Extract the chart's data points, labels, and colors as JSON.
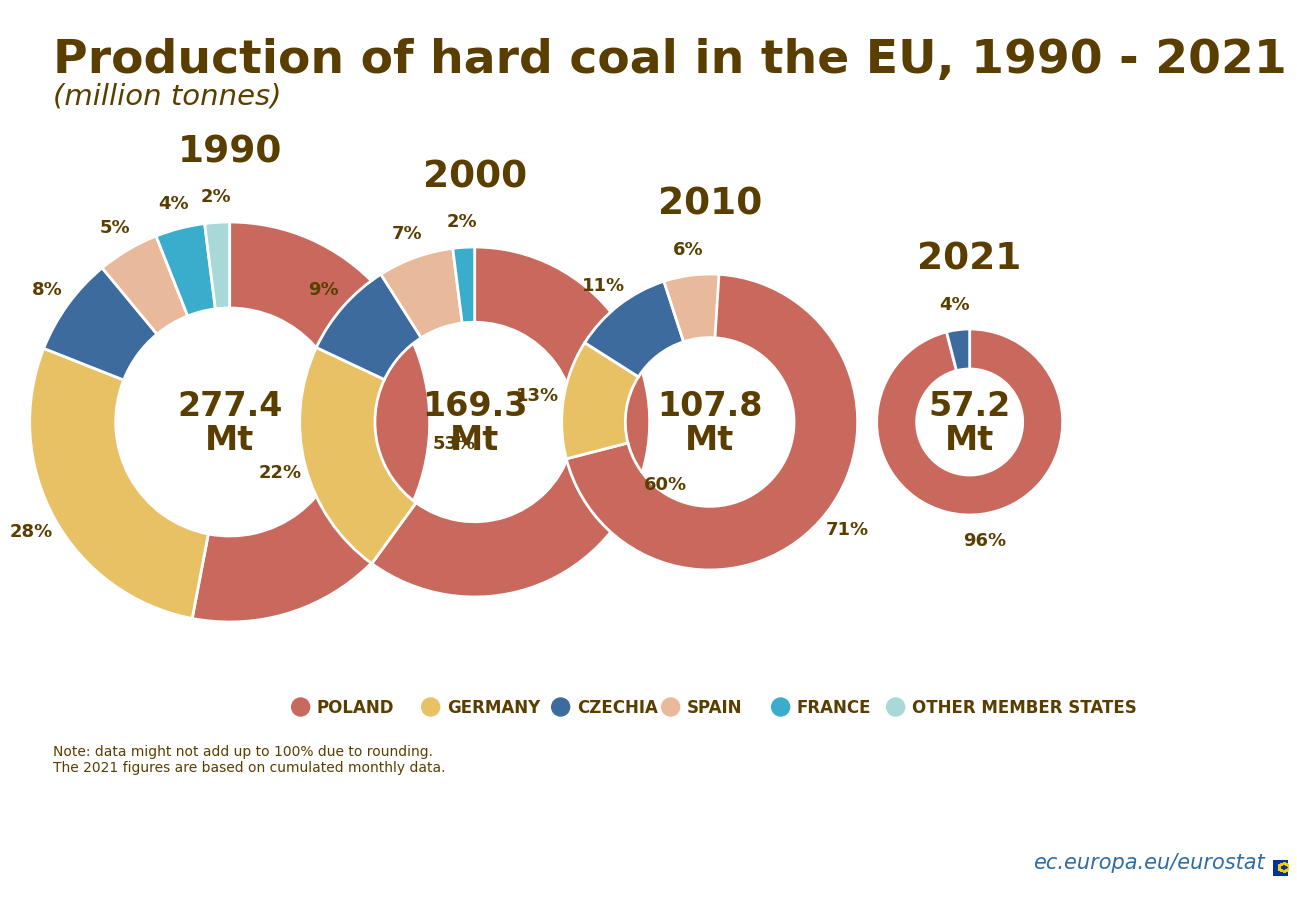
{
  "title": "Production of hard coal in the EU, 1990 - 2021",
  "subtitle": "(million tonnes)",
  "title_color": "#5a3e00",
  "subtitle_color": "#5a3e00",
  "background_color": "#ffffff",
  "years": [
    "1990",
    "2000",
    "2010",
    "2021"
  ],
  "totals_line1": [
    "277.4",
    "169.3",
    "107.8",
    "57.2"
  ],
  "colors": {
    "Poland": "#c9695e",
    "Germany": "#e8c165",
    "Czechia": "#3d6b9e",
    "Spain": "#e8b99a",
    "France": "#3aadcc",
    "Other": "#a8d8d8"
  },
  "data": {
    "1990": {
      "Poland": 53,
      "Germany": 28,
      "Czechia": 8,
      "Spain": 5,
      "France": 4,
      "Other": 2
    },
    "2000": {
      "Poland": 60,
      "Germany": 22,
      "Czechia": 9,
      "Spain": 7,
      "France": 2,
      "Other": 0
    },
    "2010": {
      "Poland": 71,
      "Germany": 13,
      "Czechia": 11,
      "Spain": 6,
      "France": 0,
      "Other": 0
    },
    "2021": {
      "Poland": 96,
      "Germany": 0,
      "Czechia": 4,
      "Spain": 0,
      "France": 0,
      "Other": 0
    }
  },
  "show_label": {
    "1990": {
      "Poland": 1,
      "Germany": 1,
      "Czechia": 1,
      "Spain": 1,
      "France": 1,
      "Other": 1
    },
    "2000": {
      "Poland": 1,
      "Germany": 1,
      "Czechia": 1,
      "Spain": 1,
      "France": 1,
      "Other": 0
    },
    "2010": {
      "Poland": 1,
      "Germany": 1,
      "Czechia": 1,
      "Spain": 1,
      "France": 0,
      "Other": 0
    },
    "2021": {
      "Poland": 1,
      "Germany": 0,
      "Czechia": 1,
      "Spain": 0,
      "France": 0,
      "Other": 0
    }
  },
  "legend_labels": [
    "POLAND",
    "GERMANY",
    "CZECHIA",
    "SPAIN",
    "FRANCE",
    "OTHER MEMBER STATES"
  ],
  "legend_color_keys": [
    "Poland",
    "Germany",
    "Czechia",
    "Spain",
    "France",
    "Other"
  ],
  "note": "Note: data might not add up to 100% due to rounding.\nThe 2021 figures are based on cumulated monthly data.",
  "watermark": "ec.europa.eu/eurostat"
}
